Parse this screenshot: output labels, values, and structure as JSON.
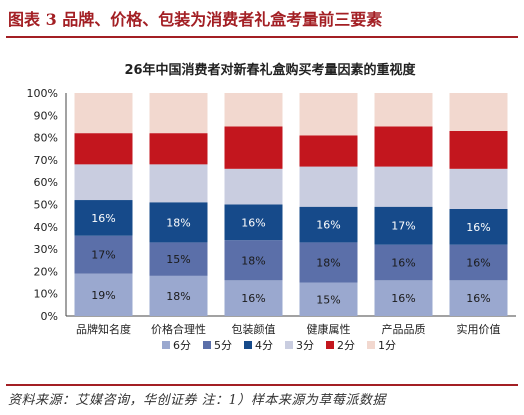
{
  "figure_title": "图表 3    品牌、价格、包装为消费者礼盒考量前三要素",
  "source_note": "资料来源：艾媒咨询，华创证券  注：1）样本来源为草莓派数据",
  "colors": {
    "header_red": "#a31f24",
    "6分": "#9aa8cf",
    "5分": "#5b6fa9",
    "4分": "#164a8a",
    "3分": "#c9cde0",
    "2分": "#c3161e",
    "1分": "#f2d8cf"
  },
  "chart_data": {
    "type": "bar",
    "stacked": true,
    "title": "26年中国消费者对新春礼盒购买考量因素的重视度",
    "categories": [
      "品牌知名度",
      "价格合理性",
      "包装颜值",
      "健康属性",
      "产品品质",
      "实用价值"
    ],
    "series": [
      {
        "name": "6分",
        "values": [
          19,
          18,
          16,
          15,
          16,
          16
        ]
      },
      {
        "name": "5分",
        "values": [
          17,
          15,
          18,
          18,
          16,
          16
        ]
      },
      {
        "name": "4分",
        "values": [
          16,
          18,
          16,
          16,
          17,
          16
        ]
      },
      {
        "name": "3分",
        "values": [
          16,
          17,
          16,
          18,
          18,
          18
        ]
      },
      {
        "name": "2分",
        "values": [
          14,
          14,
          19,
          14,
          18,
          17
        ]
      },
      {
        "name": "1分",
        "values": [
          18,
          18,
          15,
          19,
          15,
          17
        ]
      }
    ],
    "data_labels": {
      "6分": [
        "19%",
        "18%",
        "16%",
        "15%",
        "16%",
        "16%"
      ],
      "5分": [
        "17%",
        "15%",
        "18%",
        "18%",
        "16%",
        "16%"
      ],
      "4分": [
        "16%",
        "18%",
        "16%",
        "16%",
        "17%",
        "16%"
      ]
    },
    "ylim": [
      0,
      100
    ],
    "y_ticks": [
      "0%",
      "10%",
      "20%",
      "30%",
      "40%",
      "50%",
      "60%",
      "70%",
      "80%",
      "90%",
      "100%"
    ],
    "legend_position": "bottom",
    "grid": false
  }
}
